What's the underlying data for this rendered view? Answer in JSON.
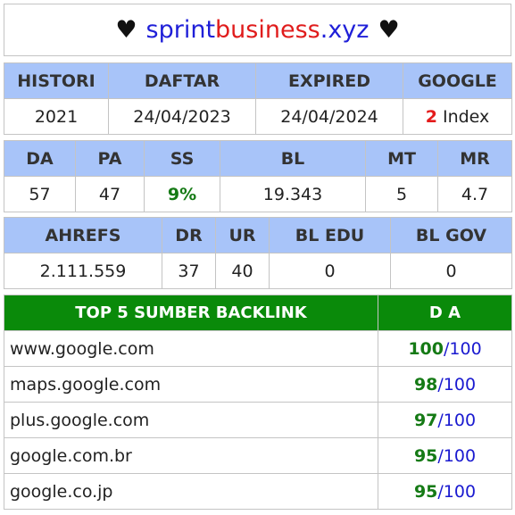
{
  "title": {
    "heart_left": "♥",
    "domain_part1": "sprint",
    "domain_part2": "business",
    "domain_part3": ".xyz",
    "heart_right": "♥"
  },
  "summary": {
    "headers": [
      "HISTORI",
      "DAFTAR",
      "EXPIRED",
      "GOOGLE"
    ],
    "histori": "2021",
    "daftar": "24/04/2023",
    "expired": "24/04/2024",
    "google_count": "2",
    "google_label": " Index"
  },
  "metrics": {
    "headers": [
      "DA",
      "PA",
      "SS",
      "BL",
      "MT",
      "MR"
    ],
    "da": "57",
    "pa": "47",
    "ss": "9%",
    "bl": "19.343",
    "mt": "5",
    "mr": "4.7"
  },
  "ahrefs": {
    "headers": [
      "AHREFS",
      "DR",
      "UR",
      "BL EDU",
      "BL GOV"
    ],
    "ahrefs": "2.111.559",
    "dr": "37",
    "ur": "40",
    "bl_edu": "0",
    "bl_gov": "0"
  },
  "backlinks": {
    "header_source": "TOP 5 SUMBER BACKLINK",
    "header_da": "D A",
    "rows": [
      {
        "site": "www.google.com",
        "da": "100",
        "max": "/100"
      },
      {
        "site": "maps.google.com",
        "da": "98",
        "max": "/100"
      },
      {
        "site": "plus.google.com",
        "da": "97",
        "max": "/100"
      },
      {
        "site": "google.com.br",
        "da": "95",
        "max": "/100"
      },
      {
        "site": "google.co.jp",
        "da": "95",
        "max": "/100"
      }
    ]
  },
  "colors": {
    "header_blue": "#a8c4f9",
    "header_green": "#0a8a0a",
    "accent_green": "#157a15",
    "accent_red": "#e41b1b",
    "accent_blue": "#1a1ad0"
  }
}
